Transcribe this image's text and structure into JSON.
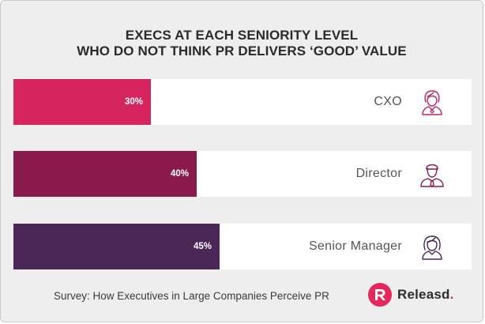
{
  "chart_data": {
    "type": "bar",
    "orientation": "horizontal",
    "title_lines": [
      "EXECS AT EACH SENIORITY LEVEL",
      "WHO DO NOT THINK PR DELIVERS ‘GOOD’ VALUE"
    ],
    "categories": [
      "CXO",
      "Director",
      "Senior Manager"
    ],
    "values": [
      30,
      40,
      45
    ],
    "value_labels": [
      "30%",
      "40%",
      "45%"
    ],
    "xlim": [
      0,
      100
    ],
    "grid": false,
    "colors": [
      "#d6245f",
      "#8a1a4c",
      "#4a2757"
    ],
    "icons": [
      "female-executive-icon",
      "male-director-icon",
      "female-manager-icon"
    ]
  },
  "footer": {
    "source": "Survey: How Executives in Large Companies Perceive PR",
    "brand_name": "Releasd",
    "brand_dot": ".",
    "brand_logo_icon": "releasd-logo-icon",
    "brand_color": "#e5285a"
  }
}
